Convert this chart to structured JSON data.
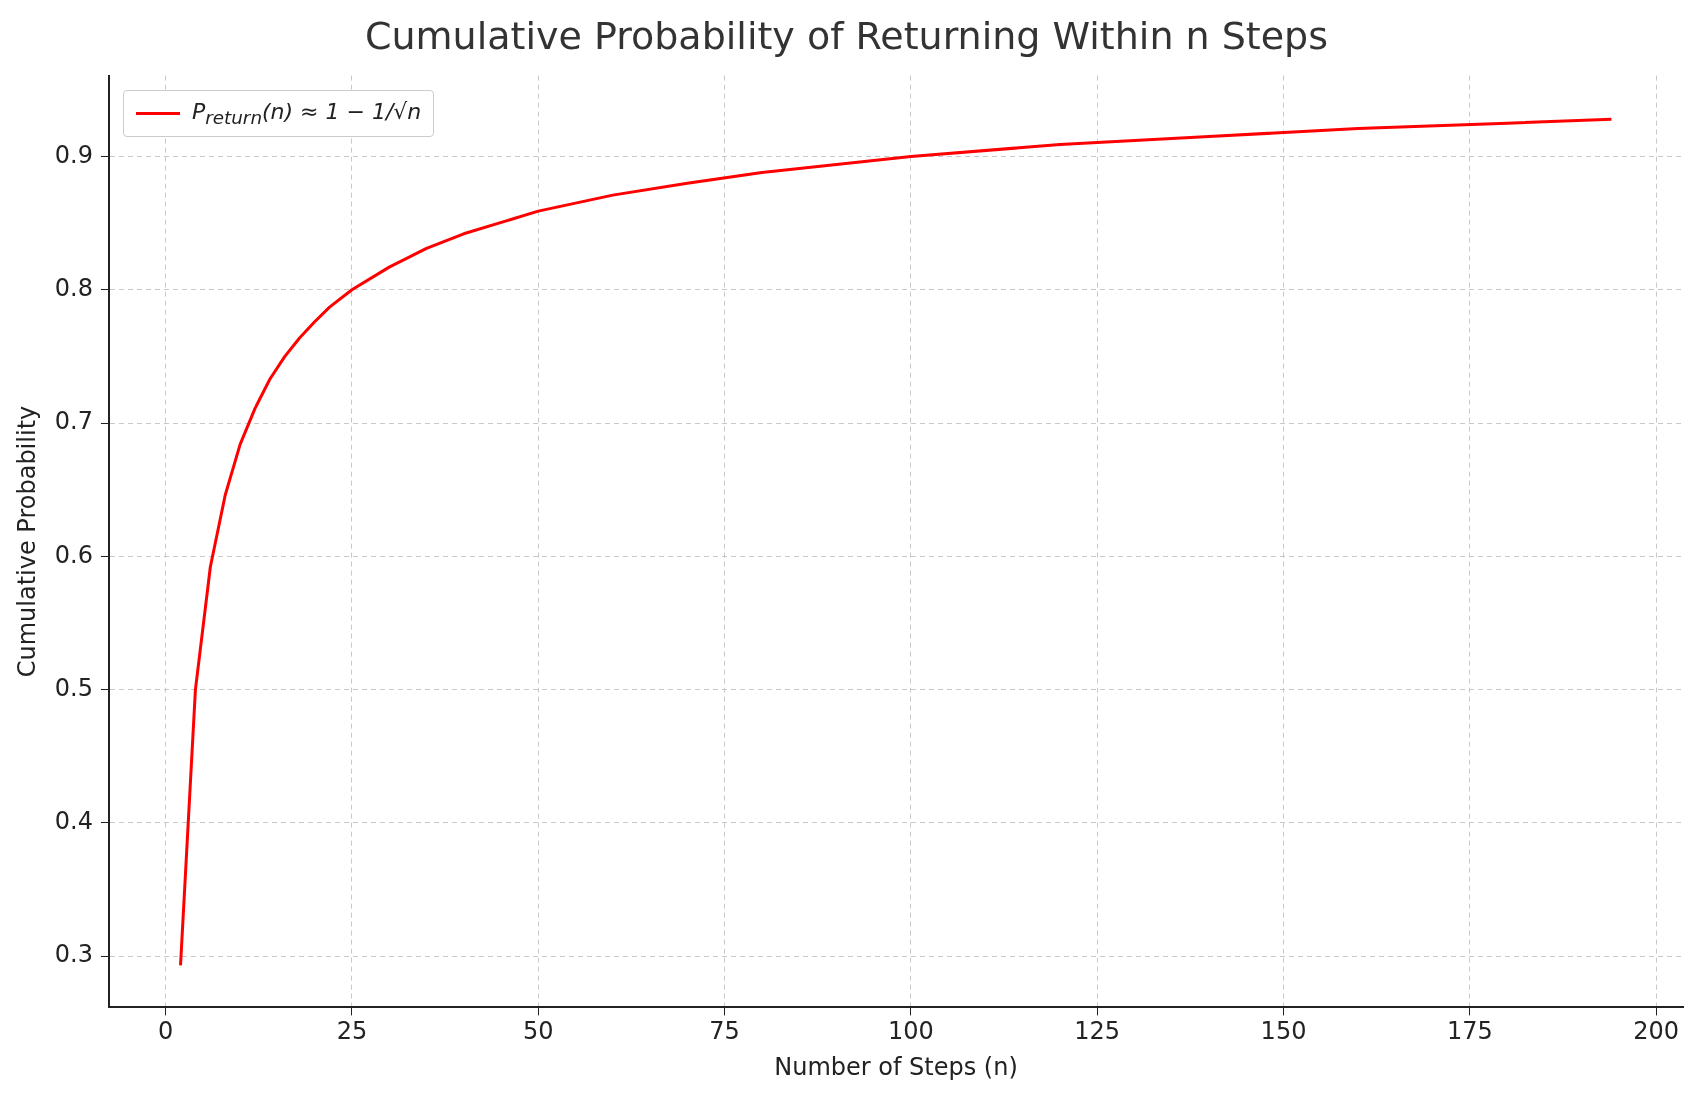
{
  "chart_data": {
    "type": "line",
    "title": "Cumulative Probability of Returning Within n Steps",
    "xlabel": "Number of Steps (n)",
    "ylabel": "Cumulative Probability",
    "x": [
      2,
      4,
      6,
      8,
      10,
      12,
      14,
      16,
      18,
      20,
      22,
      25,
      30,
      35,
      40,
      50,
      60,
      70,
      80,
      100,
      120,
      140,
      160,
      180,
      194
    ],
    "series": [
      {
        "name": "P$_{return}$(n) ≈ 1 − 1/√n",
        "color": "#ff0000",
        "values": [
          0.293,
          0.5,
          0.592,
          0.646,
          0.684,
          0.711,
          0.733,
          0.75,
          0.764,
          0.776,
          0.787,
          0.8,
          0.817,
          0.831,
          0.842,
          0.859,
          0.871,
          0.88,
          0.888,
          0.9,
          0.909,
          0.915,
          0.921,
          0.925,
          0.928
        ]
      }
    ],
    "xlim": [
      -7.6,
      203.6
    ],
    "xticks": [
      0,
      25,
      50,
      75,
      100,
      125,
      150,
      175,
      200
    ],
    "ylim": [
      0.2615,
      0.9607
    ],
    "yticks": [
      0.3,
      0.4,
      0.5,
      0.6,
      0.7,
      0.8,
      0.9
    ],
    "grid": true,
    "legend": "top left",
    "marker": "none",
    "line_style": "solid"
  }
}
